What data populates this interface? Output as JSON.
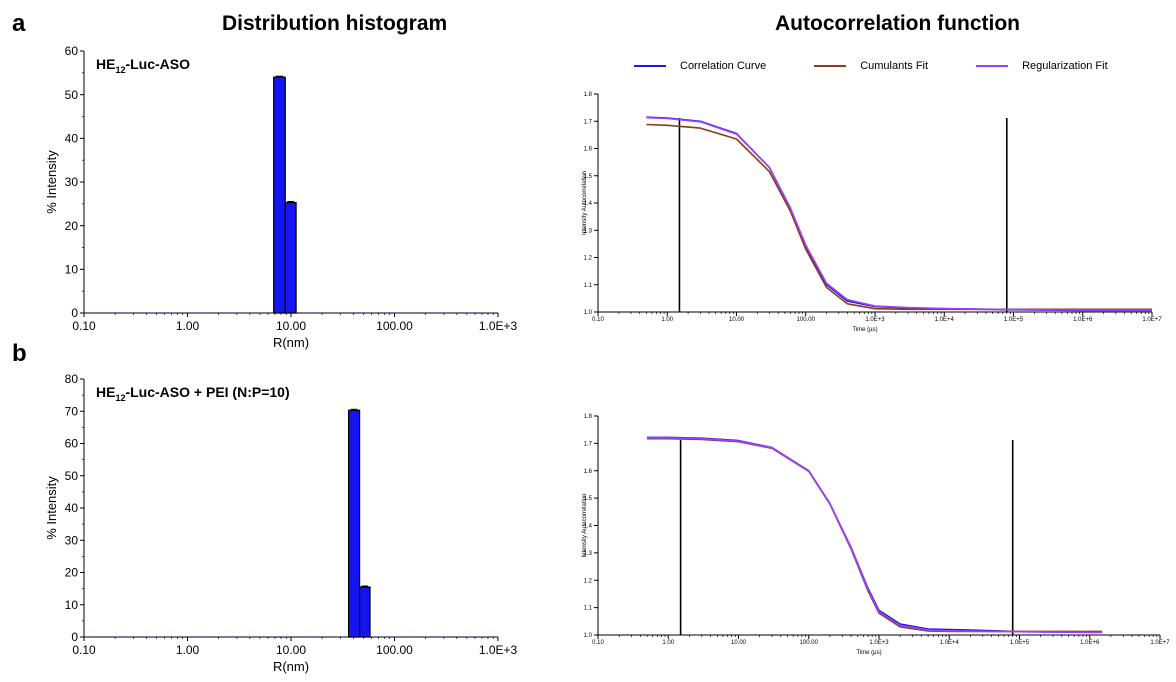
{
  "figure": {
    "left_title": "Distribution histogram",
    "right_title": "Autocorrelation function",
    "panel_a": "a",
    "panel_b": "b"
  },
  "legend": [
    {
      "label": "Correlation Curve",
      "color": "#1c1cdc"
    },
    {
      "label": "Cumulants Fit",
      "color": "#8b3a1a"
    },
    {
      "label": "Regularization Fit",
      "color": "#a040ff"
    }
  ],
  "chart_data": [
    {
      "type": "bar",
      "panel": "a",
      "annotation_main": "HE",
      "annotation_sub": "12",
      "annotation_rest": "-Luc-ASO",
      "xlabel": "R(nm)",
      "ylabel": "% Intensity",
      "xscale": "log",
      "xlim": [
        0.1,
        1000
      ],
      "xticks": [
        "0.10",
        "1.00",
        "10.00",
        "100.00",
        "1.0E+3"
      ],
      "ylim": [
        0,
        60
      ],
      "yticks": [
        0,
        10,
        20,
        30,
        40,
        50,
        60
      ],
      "bars": [
        {
          "x0": 6.8,
          "x1": 8.8,
          "value": 54.0
        },
        {
          "x0": 8.8,
          "x1": 11.2,
          "value": 25.3
        }
      ],
      "bar_color": "#1515f0"
    },
    {
      "type": "line",
      "panel": "a",
      "xlabel": "Time (µs)",
      "ylabel": "Intensity Autocorrelation",
      "xscale": "log",
      "xlim": [
        0.1,
        10000000
      ],
      "xticks": [
        "0.10",
        "1.00",
        "10.00",
        "100.00",
        "1.0E+3",
        "1.0E+4",
        "1.0E+5",
        "1.0E+6",
        "1.0E+7"
      ],
      "ylim": [
        1.0,
        1.8
      ],
      "yticks": [
        "1.0",
        "1.1",
        "1.2",
        "1.3",
        "1.4",
        "1.5",
        "1.6",
        "1.7",
        "1.8"
      ],
      "vlines": [
        1.5,
        80000
      ],
      "series": [
        {
          "name": "Correlation Curve",
          "x": [
            0.5,
            1,
            3,
            10,
            30,
            60,
            100,
            200,
            400,
            1000,
            3000,
            10000,
            100000,
            1000000,
            10000000
          ],
          "y": [
            1.715,
            1.712,
            1.7,
            1.655,
            1.53,
            1.38,
            1.24,
            1.1,
            1.04,
            1.02,
            1.015,
            1.012,
            1.008,
            1.006,
            1.006
          ]
        },
        {
          "name": "Cumulants Fit",
          "x": [
            0.5,
            1,
            3,
            10,
            30,
            60,
            100,
            200,
            400,
            1000,
            3000,
            10000,
            100000,
            1000000,
            10000000
          ],
          "y": [
            1.688,
            1.685,
            1.675,
            1.635,
            1.515,
            1.37,
            1.23,
            1.09,
            1.03,
            1.012,
            1.01,
            1.01,
            1.01,
            1.01,
            1.01
          ]
        },
        {
          "name": "Regularization Fit",
          "x": [
            0.5,
            1,
            3,
            10,
            30,
            60,
            100,
            200,
            400,
            1000,
            3000,
            10000,
            100000,
            1000000,
            10000000
          ],
          "y": [
            1.713,
            1.71,
            1.698,
            1.653,
            1.53,
            1.382,
            1.245,
            1.105,
            1.045,
            1.022,
            1.016,
            1.013,
            1.009,
            1.007,
            1.007
          ]
        }
      ]
    },
    {
      "type": "bar",
      "panel": "b",
      "annotation_main": "HE",
      "annotation_sub": "12",
      "annotation_rest": "-Luc-ASO +  PEI (N:P=10)",
      "xlabel": "R(nm)",
      "ylabel": "% Intensity",
      "xscale": "log",
      "xlim": [
        0.1,
        1000
      ],
      "xticks": [
        "0.10",
        "1.00",
        "10.00",
        "100.00",
        "1.0E+3"
      ],
      "ylim": [
        0,
        80
      ],
      "yticks": [
        0,
        10,
        20,
        30,
        40,
        50,
        60,
        70,
        80
      ],
      "bars": [
        {
          "x0": 36,
          "x1": 46,
          "value": 70.3
        },
        {
          "x0": 46,
          "x1": 58,
          "value": 15.5
        }
      ],
      "bar_color": "#1515f0"
    },
    {
      "type": "line",
      "panel": "b",
      "xlabel": "Time (µs)",
      "ylabel": "Intensity Autocorrelation",
      "xscale": "log",
      "xlim": [
        0.1,
        10000000
      ],
      "xticks": [
        "0.10",
        "1.00",
        "10.00",
        "100.00",
        "1.0E+3",
        "1.0E+4",
        "1.0E+5",
        "1.0E+6",
        "1.0E+7"
      ],
      "ylim": [
        1.0,
        1.8
      ],
      "yticks": [
        "1.0",
        "1.1",
        "1.2",
        "1.3",
        "1.4",
        "1.5",
        "1.6",
        "1.7",
        "1.8"
      ],
      "vlines": [
        1.5,
        80000
      ],
      "series": [
        {
          "name": "Correlation Curve",
          "x": [
            0.5,
            1,
            3,
            10,
            30,
            100,
            200,
            400,
            700,
            1000,
            2000,
            5000,
            10000,
            20000,
            50000,
            100000,
            1000000,
            1500000
          ],
          "y": [
            1.722,
            1.722,
            1.719,
            1.71,
            1.685,
            1.6,
            1.48,
            1.32,
            1.17,
            1.09,
            1.04,
            1.022,
            1.02,
            1.018,
            1.015,
            1.012,
            1.01,
            1.01
          ]
        },
        {
          "name": "Cumulants Fit",
          "x": [
            0.5,
            1,
            3,
            10,
            30,
            100,
            200,
            400,
            700,
            1000,
            2000,
            5000,
            10000,
            100000,
            1000000,
            1500000
          ],
          "y": [
            1.717,
            1.717,
            1.714,
            1.706,
            1.682,
            1.598,
            1.478,
            1.315,
            1.16,
            1.08,
            1.03,
            1.015,
            1.013,
            1.013,
            1.013,
            1.013
          ]
        },
        {
          "name": "Regularization Fit",
          "x": [
            0.5,
            1,
            3,
            10,
            30,
            100,
            200,
            400,
            700,
            1000,
            2000,
            5000,
            10000,
            100000,
            1000000,
            1500000
          ],
          "y": [
            1.72,
            1.72,
            1.717,
            1.708,
            1.684,
            1.6,
            1.48,
            1.318,
            1.165,
            1.085,
            1.035,
            1.018,
            1.015,
            1.012,
            1.01,
            1.01
          ]
        }
      ]
    }
  ]
}
